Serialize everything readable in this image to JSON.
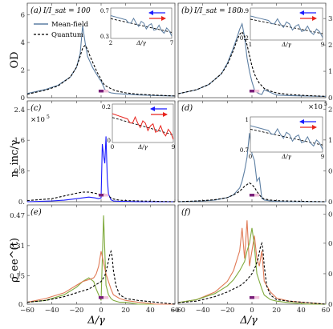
{
  "chart_data": {
    "type": "line",
    "xlabel": "Δ/γ",
    "xlim": [
      -60,
      60
    ],
    "xticks": [
      "−60",
      "−40",
      "−20",
      "0",
      "20",
      "40",
      "60"
    ],
    "legend_entries": [
      "Mean-field",
      "Quantum"
    ],
    "row_labels": [
      "OD",
      "n_inc/γ",
      "ρ_ee^(t)"
    ],
    "colors": {
      "mean_field": "#5d7fa3",
      "quantum": "#000000",
      "blue_arrow": "#1a1aff",
      "red_arrow": "#e8231d",
      "green": "#7faa3c",
      "orange": "#e07a56",
      "purple_bar": "#7a1f7a",
      "pink_bar": "#f2c4dc"
    },
    "panels": [
      {
        "label": "(a)",
        "annotation": "I/I_sat = 100",
        "ylim": [
          0,
          6.5
        ],
        "yticks": [
          "0",
          "2",
          "4",
          "6"
        ],
        "yaxis_side": "left",
        "series": [
          {
            "name": "Mean-field",
            "x": [
              -60,
              -45,
              -35,
              -25,
              -20,
              -17,
              -15,
              -13,
              -11,
              -9,
              -7,
              -5,
              -3,
              -1,
              0,
              1,
              2,
              3,
              5,
              8,
              12,
              20,
              30,
              45,
              60
            ],
            "y": [
              0.3,
              0.6,
              0.9,
              1.5,
              2.2,
              3.2,
              5.2,
              4.0,
              3.0,
              2.6,
              2.2,
              1.9,
              1.6,
              1.3,
              1.2,
              1.0,
              0.8,
              0.6,
              0.45,
              0.35,
              0.3,
              0.25,
              0.2,
              0.15,
              0.12
            ]
          },
          {
            "x": [
              -60,
              -45,
              -35,
              -25,
              -20,
              -17,
              -15,
              -13,
              -11,
              -9,
              -7,
              -5,
              -3,
              -1,
              0,
              2,
              4,
              6,
              8,
              12,
              20,
              30,
              45,
              60
            ],
            "y": [
              0.25,
              0.55,
              0.85,
              1.5,
              2.2,
              3.0,
              3.6,
              3.8,
              3.5,
              3.0,
              2.6,
              2.2,
              1.8,
              1.5,
              1.3,
              1.0,
              0.85,
              0.75,
              0.65,
              0.5,
              0.35,
              0.25,
              0.18,
              0.12
            ]
          }
        ],
        "inset": {
          "xlim": [
            2,
            7
          ],
          "ylim": [
            0.3,
            0.7
          ],
          "xticks": [
            "2",
            "7"
          ],
          "yticks": [
            "0.3",
            "0.7"
          ],
          "xlabel": "Δ/γ"
        }
      },
      {
        "label": "(b)",
        "annotation": "I/I_sat = 180",
        "ylim": [
          0,
          3.4
        ],
        "yticks": [
          "0",
          "1",
          "2",
          "3"
        ],
        "yaxis_side": "right",
        "series": [
          {
            "x": [
              -60,
              -45,
              -35,
              -25,
              -20,
              -15,
              -12,
              -10,
              -8,
              -6,
              -4,
              -2,
              0,
              2,
              4,
              6,
              8,
              10,
              15,
              20,
              30,
              45,
              60
            ],
            "y": [
              0.15,
              0.3,
              0.5,
              0.9,
              1.3,
              1.9,
              2.3,
              2.6,
              2.8,
              2.3,
              1.5,
              1.0,
              0.6,
              0.3,
              0.2,
              0.15,
              0.12,
              0.3,
              0.2,
              0.1,
              0.08,
              0.06,
              0.05
            ]
          },
          {
            "x": [
              -60,
              -45,
              -35,
              -25,
              -20,
              -15,
              -12,
              -10,
              -8,
              -6,
              -4,
              -2,
              0,
              2,
              4,
              6,
              8,
              10,
              15,
              20,
              30,
              45,
              60
            ],
            "y": [
              0.15,
              0.3,
              0.5,
              0.9,
              1.25,
              1.8,
              2.2,
              2.4,
              2.5,
              2.3,
              2.0,
              1.6,
              1.2,
              0.9,
              0.7,
              0.55,
              0.45,
              0.35,
              0.25,
              0.18,
              0.12,
              0.08,
              0.05
            ]
          }
        ],
        "inset": {
          "xlim": [
            1,
            9
          ],
          "ylim": [
            0.2,
            0.9
          ],
          "xticks": [
            "1",
            "9"
          ],
          "yticks": [
            "0.2",
            "0.9"
          ],
          "xlabel": "Δ/γ"
        }
      },
      {
        "label": "(c)",
        "annotation": "×10^5",
        "ylim": [
          0,
          2.5
        ],
        "yticks": [
          "0.",
          "0.8",
          "1.6",
          "2.4"
        ],
        "yaxis_side": "left",
        "series": [
          {
            "x": [
              -60,
              -40,
              -30,
              -20,
              -15,
              -10,
              -5,
              -2,
              0,
              1,
              2,
              3,
              4,
              5,
              6,
              8,
              10,
              15,
              20,
              30,
              45,
              60
            ],
            "y": [
              0.0,
              0.02,
              0.04,
              0.08,
              0.1,
              0.12,
              0.1,
              0.08,
              0.1,
              1.5,
              1.2,
              1.0,
              1.7,
              0.6,
              0.2,
              0.05,
              0.02,
              0.01,
              0.01,
              0.0,
              0.0,
              0.0
            ]
          },
          {
            "x": [
              -60,
              -40,
              -30,
              -20,
              -15,
              -10,
              -5,
              -2,
              0,
              2,
              4,
              6,
              8,
              10,
              15,
              20,
              30,
              45,
              60
            ],
            "y": [
              0.03,
              0.08,
              0.15,
              0.22,
              0.25,
              0.25,
              0.22,
              0.2,
              0.18,
              0.2,
              0.2,
              0.15,
              0.1,
              0.07,
              0.04,
              0.03,
              0.02,
              0.01,
              0.0
            ]
          }
        ],
        "inset": {
          "xlim": [
            0,
            9
          ],
          "ylim": [
            0,
            0.2
          ],
          "xticks": [
            "0",
            "9"
          ],
          "yticks": [
            "0",
            "0.2"
          ],
          "xlabel": "Δ/γ"
        }
      },
      {
        "label": "(d)",
        "annotation": "×10^5",
        "ylim": [
          0,
          2.8
        ],
        "yticks": [
          "0.",
          "0.9",
          "1.8",
          "2.7"
        ],
        "yaxis_side": "right",
        "series": [
          {
            "x": [
              -60,
              -40,
              -30,
              -20,
              -15,
              -10,
              -8,
              -6,
              -4,
              -2,
              0,
              2,
              4,
              6,
              8,
              10,
              15,
              20,
              30,
              45,
              60
            ],
            "y": [
              0.0,
              0.02,
              0.05,
              0.12,
              0.2,
              0.4,
              0.6,
              0.9,
              1.3,
              2.0,
              1.4,
              1.2,
              0.6,
              0.7,
              0.1,
              0.05,
              0.02,
              0.01,
              0.0,
              0.0,
              0.0
            ]
          },
          {
            "x": [
              -60,
              -40,
              -30,
              -20,
              -15,
              -10,
              -8,
              -6,
              -4,
              -2,
              0,
              2,
              4,
              6,
              8,
              10,
              15,
              20,
              30,
              45,
              60
            ],
            "y": [
              0.0,
              0.03,
              0.06,
              0.12,
              0.2,
              0.3,
              0.38,
              0.45,
              0.5,
              0.55,
              0.5,
              0.42,
              0.3,
              0.2,
              0.12,
              0.08,
              0.05,
              0.03,
              0.02,
              0.01,
              0.0
            ]
          }
        ],
        "inset": {
          "xlim": [
            0,
            9
          ],
          "ylim": [
            0.7,
            1.0
          ],
          "xticks": [
            "0",
            "9"
          ],
          "yticks": [
            "0.7",
            "1"
          ],
          "xlabel": "Δ/γ"
        }
      },
      {
        "label": "(e)",
        "ylim": [
          0,
          0.5
        ],
        "yticks": [
          "0.",
          "0.15",
          "0.31",
          "0.47"
        ],
        "yaxis_side": "left",
        "series": [
          {
            "x": [
              -60,
              -45,
              -30,
              -20,
              -15,
              -10,
              -6,
              -4,
              -2,
              0,
              2,
              4,
              6,
              8,
              10,
              15,
              20,
              30,
              45,
              60
            ],
            "y": [
              0.01,
              0.02,
              0.05,
              0.09,
              0.12,
              0.14,
              0.12,
              0.08,
              0.05,
              0.02,
              0.47,
              0.1,
              0.05,
              0.03,
              0.02,
              0.01,
              0.01,
              0.0,
              0.0,
              0.0
            ]
          },
          {
            "x": [
              -60,
              -45,
              -30,
              -20,
              -15,
              -10,
              -6,
              -4,
              -2,
              0,
              2,
              4,
              6,
              8,
              10,
              15,
              20,
              30,
              45,
              60
            ],
            "y": [
              0.01,
              0.03,
              0.06,
              0.1,
              0.12,
              0.13,
              0.14,
              0.16,
              0.2,
              0.28,
              0.22,
              0.16,
              0.12,
              0.08,
              0.05,
              0.03,
              0.02,
              0.01,
              0.0,
              0.0
            ]
          },
          {
            "x": [
              -60,
              -45,
              -30,
              -20,
              -10,
              -5,
              0,
              3,
              5,
              7,
              8,
              9,
              10,
              12,
              15,
              20,
              30,
              45,
              60
            ],
            "y": [
              0.01,
              0.02,
              0.04,
              0.06,
              0.08,
              0.1,
              0.12,
              0.15,
              0.2,
              0.26,
              0.28,
              0.25,
              0.18,
              0.1,
              0.05,
              0.03,
              0.02,
              0.01,
              0.0
            ]
          }
        ]
      },
      {
        "label": "(f)",
        "ylim": [
          0,
          0.62
        ],
        "yticks": [
          "0.",
          "0.2",
          "0.4",
          "0.59"
        ],
        "yaxis_side": "right",
        "series": [
          {
            "x": [
              -60,
              -45,
              -30,
              -20,
              -15,
              -10,
              -8,
              -6,
              -4,
              -2,
              0,
              2,
              4,
              6,
              8,
              10,
              15,
              20,
              30,
              45,
              60
            ],
            "y": [
              0.01,
              0.03,
              0.08,
              0.15,
              0.22,
              0.35,
              0.5,
              0.3,
              0.55,
              0.25,
              0.35,
              0.45,
              0.3,
              0.25,
              0.35,
              0.15,
              0.08,
              0.04,
              0.02,
              0.01,
              0.0
            ]
          },
          {
            "x": [
              -60,
              -45,
              -30,
              -20,
              -15,
              -10,
              -6,
              -4,
              -2,
              0,
              2,
              4,
              6,
              8,
              10,
              15,
              20,
              30,
              45,
              60
            ],
            "y": [
              0.01,
              0.03,
              0.07,
              0.12,
              0.16,
              0.22,
              0.28,
              0.35,
              0.4,
              0.5,
              0.38,
              0.2,
              0.15,
              0.1,
              0.06,
              0.03,
              0.02,
              0.01,
              0.0,
              0.0
            ]
          },
          {
            "x": [
              -60,
              -45,
              -30,
              -20,
              -10,
              -5,
              0,
              3,
              5,
              7,
              8,
              9,
              10,
              12,
              15,
              20,
              30,
              45,
              60
            ],
            "y": [
              0.01,
              0.02,
              0.05,
              0.08,
              0.12,
              0.15,
              0.2,
              0.25,
              0.3,
              0.38,
              0.4,
              0.35,
              0.25,
              0.12,
              0.06,
              0.03,
              0.02,
              0.01,
              0.0
            ]
          }
        ]
      }
    ]
  }
}
